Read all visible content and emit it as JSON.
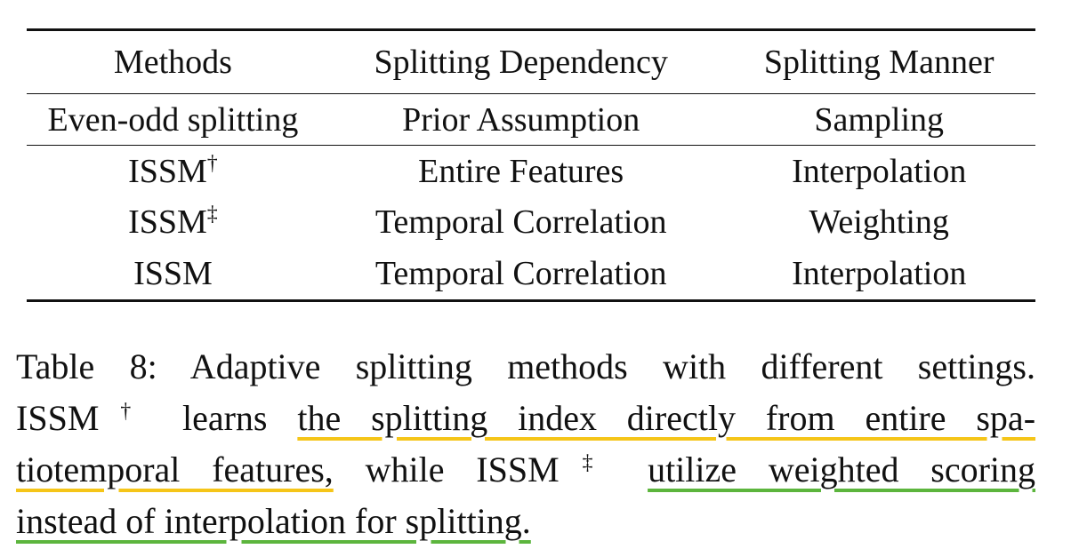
{
  "table": {
    "headers": [
      "Methods",
      "Splitting Dependency",
      "Splitting Manner"
    ],
    "rows": [
      {
        "method": "Even-odd splitting",
        "method_mark": "",
        "dependency": "Prior Assumption",
        "manner": "Sampling"
      },
      {
        "method": "ISSM",
        "method_mark": "†",
        "dependency": "Entire Features",
        "manner": "Interpolation"
      },
      {
        "method": "ISSM",
        "method_mark": "‡",
        "dependency": "Temporal Correlation",
        "manner": "Weighting"
      },
      {
        "method": "ISSM",
        "method_mark": "",
        "dependency": "Temporal Correlation",
        "manner": "Interpolation"
      }
    ]
  },
  "caption": {
    "prefix": "Table 8: Adaptive splitting methods with different settings.",
    "issm_a": "ISSM",
    "mark_a": "†",
    "learns": " learns ",
    "hl1_part1": "the splitting index directly from entire spa-",
    "hl1_part2": "tiotemporal features,",
    "while": " while ",
    "issm_b": "ISSM",
    "mark_b": "‡",
    "space": " ",
    "hl2_part1": "utilize weighted scoring",
    "hl2_part2": "instead of interpolation for splitting."
  },
  "colors": {
    "highlight_yellow": "#f5c518",
    "highlight_green": "#5cb53d",
    "text": "#111111"
  }
}
